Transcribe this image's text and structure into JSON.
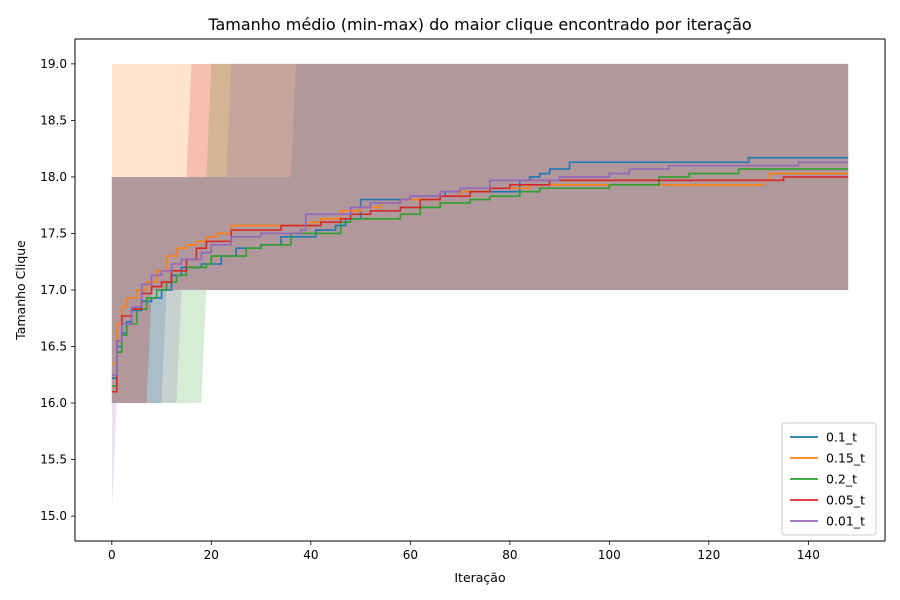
{
  "chart_data": {
    "type": "line",
    "title": "Tamanho médio (min-max) do maior clique encontrado por iteração",
    "xlabel": "Iteração",
    "ylabel": "Tamanho Clique",
    "xlim": [
      -7.4,
      155.4
    ],
    "ylim": [
      14.78,
      19.22
    ],
    "xticks": [
      0,
      20,
      40,
      60,
      80,
      100,
      120,
      140
    ],
    "yticks": [
      15.0,
      15.5,
      16.0,
      16.5,
      17.0,
      17.5,
      18.0,
      18.5,
      19.0
    ],
    "ytick_labels": [
      "15.0",
      "15.5",
      "16.0",
      "16.5",
      "17.0",
      "17.5",
      "18.0",
      "18.5",
      "19.0"
    ],
    "grid": false,
    "legend_position": "lower-right",
    "series": [
      {
        "name": "0.1_t",
        "color": "#1f77b4",
        "mean": [
          [
            0,
            16.22
          ],
          [
            1,
            16.5
          ],
          [
            2,
            16.62
          ],
          [
            3,
            16.72
          ],
          [
            4,
            16.82
          ],
          [
            6,
            16.9
          ],
          [
            8,
            16.93
          ],
          [
            10,
            17.0
          ],
          [
            12,
            17.13
          ],
          [
            14,
            17.2
          ],
          [
            18,
            17.23
          ],
          [
            22,
            17.3
          ],
          [
            24,
            17.3
          ],
          [
            25,
            17.37
          ],
          [
            30,
            17.4
          ],
          [
            33,
            17.4
          ],
          [
            34,
            17.47
          ],
          [
            39,
            17.47
          ],
          [
            41,
            17.53
          ],
          [
            45,
            17.57
          ],
          [
            47,
            17.63
          ],
          [
            50,
            17.8
          ],
          [
            58,
            17.8
          ],
          [
            60,
            17.83
          ],
          [
            66,
            17.83
          ],
          [
            67,
            17.87
          ],
          [
            82,
            17.97
          ],
          [
            84,
            18.0
          ],
          [
            86,
            18.03
          ],
          [
            88,
            18.07
          ],
          [
            92,
            18.13
          ],
          [
            127,
            18.13
          ],
          [
            128,
            18.17
          ],
          [
            148,
            18.17
          ]
        ],
        "min": [
          [
            0,
            16
          ],
          [
            1,
            16
          ],
          [
            10,
            16
          ],
          [
            11,
            17
          ],
          [
            148,
            17
          ]
        ],
        "max": [
          [
            0,
            18
          ],
          [
            1,
            18
          ],
          [
            36,
            18
          ],
          [
            37,
            19
          ],
          [
            148,
            19
          ]
        ]
      },
      {
        "name": "0.15_t",
        "color": "#ff7f0e",
        "mean": [
          [
            0,
            16.35
          ],
          [
            1,
            16.7
          ],
          [
            2,
            16.85
          ],
          [
            3,
            16.93
          ],
          [
            5,
            17.0
          ],
          [
            7,
            17.07
          ],
          [
            9,
            17.17
          ],
          [
            11,
            17.3
          ],
          [
            13,
            17.37
          ],
          [
            15,
            17.4
          ],
          [
            17,
            17.43
          ],
          [
            19,
            17.47
          ],
          [
            21,
            17.5
          ],
          [
            24,
            17.57
          ],
          [
            38,
            17.57
          ],
          [
            40,
            17.6
          ],
          [
            42,
            17.63
          ],
          [
            46,
            17.7
          ],
          [
            50,
            17.73
          ],
          [
            54,
            17.77
          ],
          [
            58,
            17.8
          ],
          [
            66,
            17.83
          ],
          [
            70,
            17.87
          ],
          [
            76,
            17.9
          ],
          [
            84,
            17.93
          ],
          [
            100,
            17.93
          ],
          [
            128,
            17.93
          ],
          [
            131,
            17.97
          ],
          [
            132,
            18.03
          ],
          [
            148,
            18.03
          ]
        ],
        "min": [
          [
            0,
            16
          ],
          [
            1,
            16
          ],
          [
            7,
            16
          ],
          [
            8,
            17
          ],
          [
            148,
            17
          ]
        ],
        "max": [
          [
            0,
            19
          ],
          [
            148,
            19
          ]
        ]
      },
      {
        "name": "0.2_t",
        "color": "#2ca02c",
        "mean": [
          [
            0,
            16.15
          ],
          [
            1,
            16.45
          ],
          [
            2,
            16.6
          ],
          [
            3,
            16.7
          ],
          [
            5,
            16.83
          ],
          [
            7,
            16.93
          ],
          [
            9,
            17.0
          ],
          [
            11,
            17.07
          ],
          [
            13,
            17.13
          ],
          [
            15,
            17.2
          ],
          [
            19,
            17.23
          ],
          [
            20,
            17.3
          ],
          [
            25,
            17.3
          ],
          [
            27,
            17.37
          ],
          [
            30,
            17.4
          ],
          [
            36,
            17.5
          ],
          [
            46,
            17.6
          ],
          [
            48,
            17.63
          ],
          [
            56,
            17.63
          ],
          [
            58,
            17.67
          ],
          [
            62,
            17.73
          ],
          [
            66,
            17.77
          ],
          [
            72,
            17.8
          ],
          [
            76,
            17.83
          ],
          [
            80,
            17.83
          ],
          [
            82,
            17.87
          ],
          [
            86,
            17.9
          ],
          [
            98,
            17.9
          ],
          [
            100,
            17.93
          ],
          [
            110,
            18.0
          ],
          [
            116,
            18.03
          ],
          [
            124,
            18.03
          ],
          [
            126,
            18.07
          ],
          [
            148,
            18.07
          ]
        ],
        "min": [
          [
            0,
            16
          ],
          [
            1,
            16
          ],
          [
            18,
            16
          ],
          [
            19,
            17
          ],
          [
            148,
            17
          ]
        ],
        "max": [
          [
            0,
            18
          ],
          [
            1,
            18
          ],
          [
            19,
            18
          ],
          [
            20,
            19
          ],
          [
            148,
            19
          ]
        ]
      },
      {
        "name": "0.05_t",
        "color": "#d62728",
        "mean": [
          [
            0,
            16.1
          ],
          [
            1,
            16.55
          ],
          [
            2,
            16.77
          ],
          [
            4,
            16.83
          ],
          [
            6,
            16.97
          ],
          [
            8,
            17.03
          ],
          [
            10,
            17.07
          ],
          [
            12,
            17.17
          ],
          [
            15,
            17.27
          ],
          [
            17,
            17.37
          ],
          [
            19,
            17.43
          ],
          [
            22,
            17.43
          ],
          [
            24,
            17.53
          ],
          [
            28,
            17.53
          ],
          [
            34,
            17.57
          ],
          [
            38,
            17.57
          ],
          [
            42,
            17.6
          ],
          [
            46,
            17.63
          ],
          [
            48,
            17.67
          ],
          [
            52,
            17.7
          ],
          [
            58,
            17.73
          ],
          [
            62,
            17.8
          ],
          [
            66,
            17.83
          ],
          [
            72,
            17.87
          ],
          [
            76,
            17.9
          ],
          [
            80,
            17.93
          ],
          [
            86,
            17.93
          ],
          [
            88,
            17.97
          ],
          [
            134,
            17.97
          ],
          [
            135,
            18.0
          ],
          [
            148,
            18.0
          ]
        ],
        "min": [
          [
            0,
            16
          ],
          [
            1,
            16
          ],
          [
            7,
            16
          ],
          [
            8,
            17
          ],
          [
            148,
            17
          ]
        ],
        "max": [
          [
            0,
            18
          ],
          [
            1,
            18
          ],
          [
            15,
            18
          ],
          [
            16,
            19
          ],
          [
            148,
            19
          ]
        ]
      },
      {
        "name": "0.01_t",
        "color": "#9467bd",
        "mean": [
          [
            0,
            16.25
          ],
          [
            1,
            16.55
          ],
          [
            2,
            16.7
          ],
          [
            4,
            16.85
          ],
          [
            6,
            17.05
          ],
          [
            8,
            17.13
          ],
          [
            10,
            17.17
          ],
          [
            12,
            17.23
          ],
          [
            14,
            17.27
          ],
          [
            18,
            17.33
          ],
          [
            20,
            17.4
          ],
          [
            24,
            17.47
          ],
          [
            28,
            17.47
          ],
          [
            30,
            17.5
          ],
          [
            38,
            17.53
          ],
          [
            39,
            17.67
          ],
          [
            46,
            17.67
          ],
          [
            48,
            17.73
          ],
          [
            52,
            17.77
          ],
          [
            58,
            17.8
          ],
          [
            60,
            17.83
          ],
          [
            66,
            17.87
          ],
          [
            70,
            17.9
          ],
          [
            76,
            17.97
          ],
          [
            84,
            17.97
          ],
          [
            90,
            18.0
          ],
          [
            100,
            18.03
          ],
          [
            104,
            18.07
          ],
          [
            112,
            18.1
          ],
          [
            124,
            18.1
          ],
          [
            134,
            18.1
          ],
          [
            138,
            18.13
          ],
          [
            148,
            18.13
          ]
        ],
        "min": [
          [
            0,
            15
          ],
          [
            1,
            16
          ],
          [
            13,
            16
          ],
          [
            14,
            17
          ],
          [
            148,
            17
          ]
        ],
        "max": [
          [
            0,
            18
          ],
          [
            1,
            18
          ],
          [
            23,
            18
          ],
          [
            24,
            19
          ],
          [
            148,
            19
          ]
        ]
      }
    ],
    "band_colors": [
      {
        "series": "0.15_t",
        "color": "#ff7f0e",
        "opacity": 0.2
      },
      {
        "series": "0.2_t",
        "color": "#2ca02c",
        "opacity": 0.2
      },
      {
        "series": "0.1_t",
        "color": "#1f77b4",
        "opacity": 0.2
      },
      {
        "series": "0.05_t",
        "color": "#d62728",
        "opacity": 0.2
      },
      {
        "series": "0.01_t",
        "color": "#9467bd",
        "opacity": 0.2
      }
    ],
    "base_band": {
      "min": 17.0,
      "max": 19.0,
      "color": "#a88f8d",
      "note_series_start": 0
    }
  }
}
